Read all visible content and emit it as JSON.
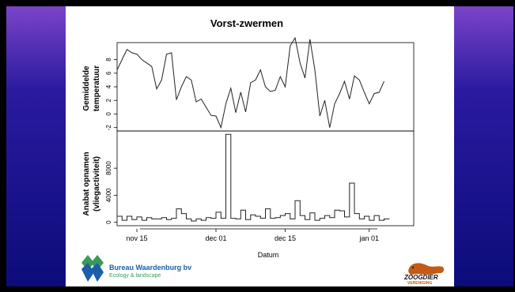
{
  "chart_data": [
    {
      "type": "line",
      "title": "Vorst-zwermen",
      "ylabel": "Gemiddelde\ntemperatuur",
      "ylim": [
        -2.5,
        10.5
      ],
      "yticks": [
        -2,
        0,
        2,
        4,
        6,
        8
      ],
      "x_day_labels": [
        "nov 15",
        "dec 01",
        "dec 15",
        "jan 01"
      ],
      "x_day_index": [
        0,
        16,
        30,
        47
      ],
      "x_start_day": -4,
      "values": [
        6.5,
        8,
        9.5,
        9,
        8.8,
        8,
        7.5,
        7,
        3.7,
        5,
        8.8,
        9,
        2.1,
        4,
        5.5,
        5,
        1.8,
        2.2,
        1,
        -0.2,
        -0.3,
        -2,
        1.5,
        3.8,
        0.2,
        3.2,
        0.3,
        4.6,
        5,
        6.5,
        4,
        3.3,
        3.5,
        5.5,
        4,
        10,
        11.2,
        7.5,
        5.3,
        11,
        6.5,
        -0.3,
        2,
        -2,
        1.5,
        3,
        4.8,
        2.2,
        5.6,
        5,
        3.2,
        1.5,
        3,
        3.2,
        4.8
      ]
    },
    {
      "type": "step",
      "ylabel": "Anabat opnamen\n(vliegactiviteit)",
      "ylim": [
        -500,
        13500
      ],
      "yticks": [
        0,
        4000,
        8000
      ],
      "xlabel": "Datum",
      "values": [
        900,
        300,
        900,
        400,
        800,
        300,
        700,
        500,
        500,
        700,
        400,
        600,
        2000,
        1300,
        500,
        200,
        500,
        300,
        700,
        600,
        1500,
        600,
        13000,
        600,
        500,
        1800,
        400,
        1100,
        900,
        600,
        2000,
        600,
        700,
        1000,
        1300,
        500,
        3200,
        1000,
        400,
        1400,
        300,
        600,
        1000,
        700,
        1800,
        1700,
        800,
        5800,
        1300,
        500,
        900,
        300,
        1000,
        300,
        500,
        600
      ]
    }
  ],
  "logos": {
    "left_name": "Bureau Waardenburg bv",
    "left_sub": "Ecology & landscape",
    "right_name": "ZOOGDIER",
    "right_sub": "VERENIGING"
  },
  "colors": {
    "line": "#222222",
    "logo_blue": "#1a5fa8",
    "logo_green": "#3a9a5a",
    "logo_orange": "#d46a1a"
  }
}
